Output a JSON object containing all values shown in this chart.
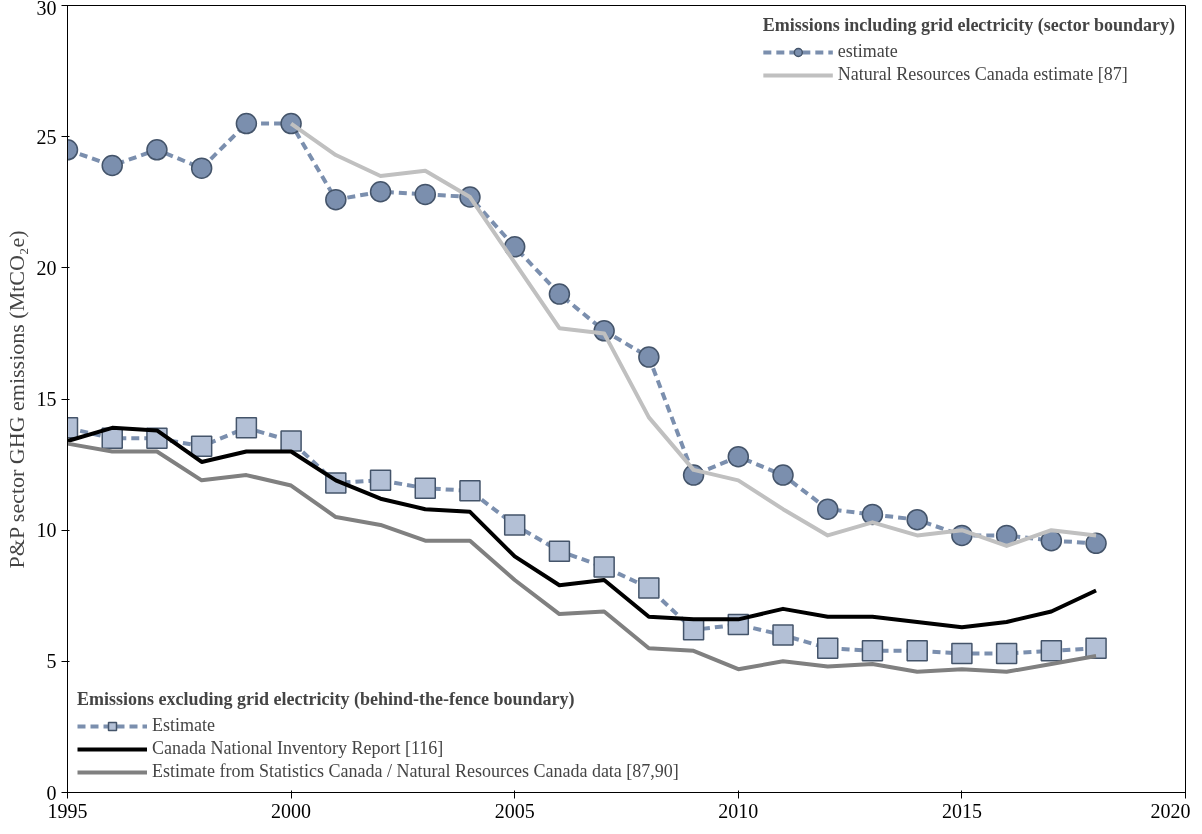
{
  "chart_data": {
    "type": "line",
    "ylabel": "P&P sector GHG emissions (MtCO₂e)",
    "xlim": [
      1995,
      2020
    ],
    "xticks": [
      1995,
      2000,
      2005,
      2010,
      2015,
      2020
    ],
    "ylim": [
      0,
      30
    ],
    "yticks": [
      0,
      5,
      10,
      15,
      20,
      25,
      30
    ],
    "grid": false,
    "legend": [
      "top right",
      "bottom left"
    ],
    "annotations": [
      "Emissions including grid electricity (sector boundary)",
      "Emissions excluding grid electricity (behind-the-fence boundary)"
    ],
    "series": [
      {
        "name": "estimate",
        "color": "#7b8fae",
        "marker": "circle",
        "line_style": "dashed",
        "x": [
          1995,
          1996,
          1997,
          1998,
          1999,
          2000,
          2001,
          2002,
          2003,
          2004,
          2005,
          2006,
          2007,
          2008,
          2009,
          2010,
          2011,
          2012,
          2013,
          2014,
          2015,
          2016,
          2017,
          2018
        ],
        "values": [
          24.5,
          23.9,
          24.5,
          23.8,
          25.5,
          25.5,
          22.6,
          22.9,
          22.8,
          22.7,
          20.8,
          19.0,
          17.6,
          16.6,
          12.1,
          12.8,
          12.1,
          10.8,
          10.6,
          10.4,
          9.8,
          9.8,
          9.6,
          9.5
        ]
      },
      {
        "name": "Natural Resources Canada estimate [87]",
        "color": "#c0c0c0",
        "marker": "none",
        "line_style": "solid",
        "x": [
          2000,
          2001,
          2002,
          2003,
          2004,
          2005,
          2006,
          2007,
          2008,
          2009,
          2010,
          2011,
          2012,
          2013,
          2014,
          2015,
          2016,
          2017,
          2018
        ],
        "values": [
          25.5,
          24.3,
          23.5,
          23.7,
          22.7,
          20.2,
          17.7,
          17.5,
          14.3,
          12.3,
          11.9,
          10.8,
          9.8,
          10.3,
          9.8,
          10.0,
          9.4,
          10.0,
          9.8
        ]
      },
      {
        "name": "Estimate",
        "color": "#7b8fae",
        "marker": "square",
        "line_style": "dashed",
        "x": [
          1995,
          1996,
          1997,
          1998,
          1999,
          2000,
          2001,
          2002,
          2003,
          2004,
          2005,
          2006,
          2007,
          2008,
          2009,
          2010,
          2011,
          2012,
          2013,
          2014,
          2015,
          2016,
          2017,
          2018
        ],
        "values": [
          13.9,
          13.5,
          13.5,
          13.2,
          13.9,
          13.4,
          11.8,
          11.9,
          11.6,
          11.5,
          10.2,
          9.2,
          8.6,
          7.8,
          6.2,
          6.4,
          6.0,
          5.5,
          5.4,
          5.4,
          5.3,
          5.3,
          5.4,
          5.5
        ]
      },
      {
        "name": "Canada National Inventory Report [116]",
        "color": "#000000",
        "marker": "none",
        "line_style": "solid",
        "x": [
          1995,
          1996,
          1997,
          1998,
          1999,
          2000,
          2001,
          2002,
          2003,
          2004,
          2005,
          2006,
          2007,
          2008,
          2009,
          2010,
          2011,
          2012,
          2013,
          2014,
          2015,
          2016,
          2017,
          2018
        ],
        "values": [
          13.4,
          13.9,
          13.8,
          12.6,
          13.0,
          13.0,
          11.9,
          11.2,
          10.8,
          10.7,
          9.0,
          7.9,
          8.1,
          6.7,
          6.6,
          6.6,
          7.0,
          6.7,
          6.7,
          6.5,
          6.3,
          6.5,
          6.9,
          7.7
        ]
      },
      {
        "name": "Estimate from Statistics Canada / Natural Resources Canada data [87,90]",
        "color": "#808080",
        "marker": "none",
        "line_style": "solid",
        "x": [
          1995,
          1996,
          1997,
          1998,
          1999,
          2000,
          2001,
          2002,
          2003,
          2004,
          2005,
          2006,
          2007,
          2008,
          2009,
          2010,
          2011,
          2012,
          2013,
          2014,
          2015,
          2016,
          2017,
          2018
        ],
        "values": [
          13.3,
          13.0,
          13.0,
          11.9,
          12.1,
          11.7,
          10.5,
          10.2,
          9.6,
          9.6,
          8.1,
          6.8,
          6.9,
          5.5,
          5.4,
          4.7,
          5.0,
          4.8,
          4.9,
          4.6,
          4.7,
          4.6,
          4.9,
          5.2
        ]
      }
    ]
  }
}
